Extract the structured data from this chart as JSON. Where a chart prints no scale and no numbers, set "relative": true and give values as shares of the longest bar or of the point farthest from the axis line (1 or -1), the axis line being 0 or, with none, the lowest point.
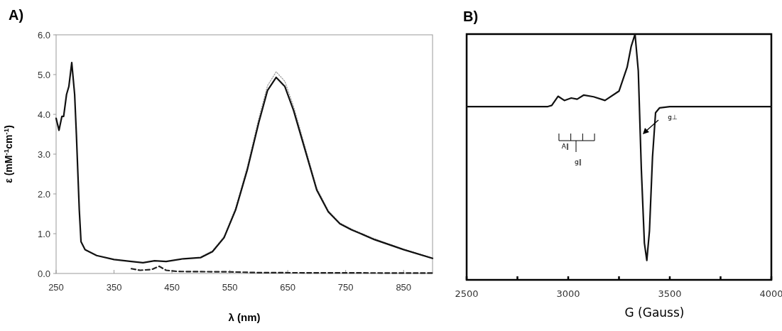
{
  "chart_data": [
    {
      "type": "line",
      "title": "A)",
      "xlabel": "λ (nm)",
      "ylabel": "ε (mM$^{-1}$cm$^{-1}$)",
      "xlim": [
        250,
        900
      ],
      "xticks": [
        250,
        350,
        450,
        550,
        650,
        750,
        850
      ],
      "ylim": [
        0,
        6
      ],
      "yticks": [
        {
          "value": 0,
          "label": "0.0"
        },
        {
          "value": 1,
          "label": "1.0"
        },
        {
          "value": 2,
          "label": "2.0"
        },
        {
          "value": 3,
          "label": "3.0"
        },
        {
          "value": 4,
          "label": "4.0"
        },
        {
          "value": 5,
          "label": "5.0"
        },
        {
          "value": 6,
          "label": "6.0"
        }
      ],
      "grid": false,
      "series": [
        {
          "color": "#a0a0a0",
          "line_style": "dotted",
          "x": [
            500,
            520,
            540,
            560,
            580,
            600,
            615,
            630,
            645,
            660,
            680,
            700,
            720,
            740,
            760,
            800,
            850,
            900
          ],
          "values": [
            0.42,
            0.57,
            0.93,
            1.65,
            2.68,
            3.9,
            4.72,
            5.07,
            4.83,
            4.2,
            3.18,
            2.15,
            1.58,
            1.27,
            1.12,
            0.87,
            0.61,
            0.39
          ]
        },
        {
          "color": "#111111",
          "line_style": "solid",
          "x": [
            250,
            255,
            260,
            263,
            268,
            272,
            277,
            282,
            285,
            290,
            293,
            300,
            320,
            350,
            380,
            400,
            420,
            440,
            470,
            500,
            520,
            540,
            560,
            580,
            600,
            615,
            630,
            645,
            660,
            680,
            700,
            720,
            740,
            760,
            800,
            850,
            900
          ],
          "values": [
            3.9,
            3.6,
            3.95,
            3.95,
            4.5,
            4.7,
            5.3,
            4.5,
            3.5,
            1.6,
            0.8,
            0.6,
            0.45,
            0.35,
            0.3,
            0.27,
            0.32,
            0.3,
            0.37,
            0.4,
            0.55,
            0.9,
            1.6,
            2.6,
            3.8,
            4.6,
            4.93,
            4.7,
            4.1,
            3.1,
            2.1,
            1.55,
            1.25,
            1.1,
            0.85,
            0.6,
            0.38
          ]
        },
        {
          "color": "#222222",
          "line_style": "dashed",
          "x": [
            380,
            395,
            415,
            428,
            440,
            460,
            550,
            600,
            900
          ],
          "values": [
            0.12,
            0.08,
            0.1,
            0.18,
            0.08,
            0.05,
            0.04,
            0.02,
            0.01
          ]
        }
      ]
    },
    {
      "type": "line",
      "title": "B)",
      "xlabel": "G  (Gauss)",
      "relative": true,
      "tick_labels": "x",
      "xlim": [
        2500,
        4000
      ],
      "xticks": [
        2500,
        {
          "value": 2750,
          "label": null
        },
        3000,
        {
          "value": 3250,
          "label": null
        },
        3500,
        {
          "value": 3750,
          "label": null
        },
        4000
      ],
      "grid": false,
      "annotations": [
        "A∥",
        "g∥",
        "g⊥"
      ],
      "series": [
        {
          "color": "#111111",
          "line_style": "solid",
          "x": [
            2500,
            2700,
            2900,
            2919,
            2950,
            2981,
            3015,
            3044,
            3077,
            3125,
            3181,
            3250,
            3290,
            3310,
            3329,
            3345,
            3360,
            3375,
            3387,
            3400,
            3415,
            3430,
            3450,
            3500,
            3700,
            4000
          ],
          "values": [
            0.705,
            0.705,
            0.705,
            0.71,
            0.747,
            0.73,
            0.74,
            0.735,
            0.752,
            0.745,
            0.73,
            0.768,
            0.865,
            0.95,
            1,
            0.85,
            0.45,
            0.15,
            0.079,
            0.2,
            0.5,
            0.68,
            0.7,
            0.705,
            0.705,
            0.705
          ]
        }
      ]
    }
  ]
}
